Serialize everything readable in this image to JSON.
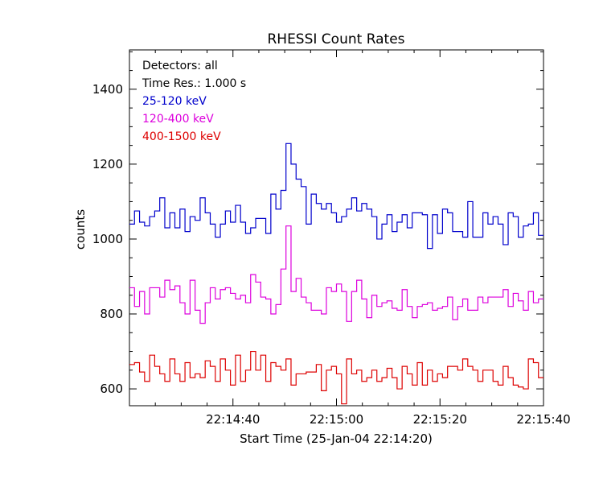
{
  "chart_data": {
    "type": "line",
    "style": "step",
    "title": "RHESSI Count Rates",
    "xlabel": "Start Time (25-Jan-04 22:14:20)",
    "ylabel": "counts",
    "annotations": [
      "Detectors: all",
      "Time Res.: 1.000 s"
    ],
    "x_ticks": [
      "22:14:40",
      "22:15:00",
      "22:15:20",
      "22:15:40"
    ],
    "x_tick_seconds": [
      20,
      40,
      60,
      80
    ],
    "xlim_seconds": [
      0,
      80
    ],
    "y_ticks": [
      600,
      800,
      1000,
      1200,
      1400
    ],
    "ylim": [
      555,
      1505
    ],
    "legend_position": "top-left",
    "series": [
      {
        "name": "25-120 keV",
        "color": "#0000cc",
        "values": [
          1040,
          1075,
          1045,
          1035,
          1060,
          1075,
          1110,
          1030,
          1070,
          1030,
          1080,
          1020,
          1060,
          1050,
          1110,
          1070,
          1040,
          1005,
          1040,
          1075,
          1045,
          1090,
          1045,
          1015,
          1030,
          1055,
          1055,
          1015,
          1120,
          1080,
          1130,
          1255,
          1200,
          1160,
          1140,
          1040,
          1120,
          1095,
          1080,
          1095,
          1070,
          1045,
          1060,
          1080,
          1110,
          1075,
          1095,
          1080,
          1060,
          1000,
          1040,
          1065,
          1020,
          1045,
          1065,
          1030,
          1070,
          1070,
          1065,
          975,
          1065,
          1015,
          1080,
          1070,
          1020,
          1020,
          1005,
          1100,
          1005,
          1005,
          1070,
          1040,
          1060,
          1040,
          985,
          1070,
          1060,
          1005,
          1035,
          1040,
          1070,
          1010
        ]
      },
      {
        "name": "120-400 keV",
        "color": "#dd00dd",
        "values": [
          870,
          820,
          860,
          800,
          870,
          870,
          845,
          890,
          865,
          875,
          830,
          800,
          890,
          810,
          775,
          830,
          870,
          840,
          865,
          870,
          855,
          840,
          850,
          830,
          905,
          885,
          845,
          840,
          800,
          825,
          920,
          1035,
          860,
          895,
          845,
          830,
          810,
          810,
          800,
          870,
          860,
          880,
          860,
          780,
          860,
          890,
          840,
          790,
          850,
          820,
          830,
          835,
          815,
          810,
          865,
          820,
          790,
          820,
          825,
          830,
          810,
          815,
          820,
          845,
          785,
          820,
          840,
          810,
          810,
          845,
          830,
          845,
          845,
          845,
          865,
          820,
          855,
          835,
          810,
          860,
          830,
          840
        ]
      },
      {
        "name": "400-1500 keV",
        "color": "#dd0000",
        "values": [
          665,
          670,
          645,
          620,
          690,
          660,
          640,
          620,
          680,
          640,
          620,
          670,
          630,
          640,
          630,
          675,
          660,
          620,
          680,
          650,
          610,
          690,
          620,
          650,
          700,
          650,
          690,
          620,
          670,
          660,
          650,
          680,
          610,
          640,
          640,
          645,
          645,
          665,
          595,
          650,
          660,
          640,
          560,
          680,
          640,
          650,
          620,
          630,
          650,
          620,
          630,
          655,
          630,
          600,
          660,
          640,
          610,
          670,
          610,
          650,
          620,
          640,
          630,
          660,
          660,
          650,
          680,
          660,
          650,
          620,
          650,
          650,
          620,
          610,
          660,
          630,
          610,
          605,
          600,
          680,
          670,
          630
        ]
      }
    ]
  }
}
